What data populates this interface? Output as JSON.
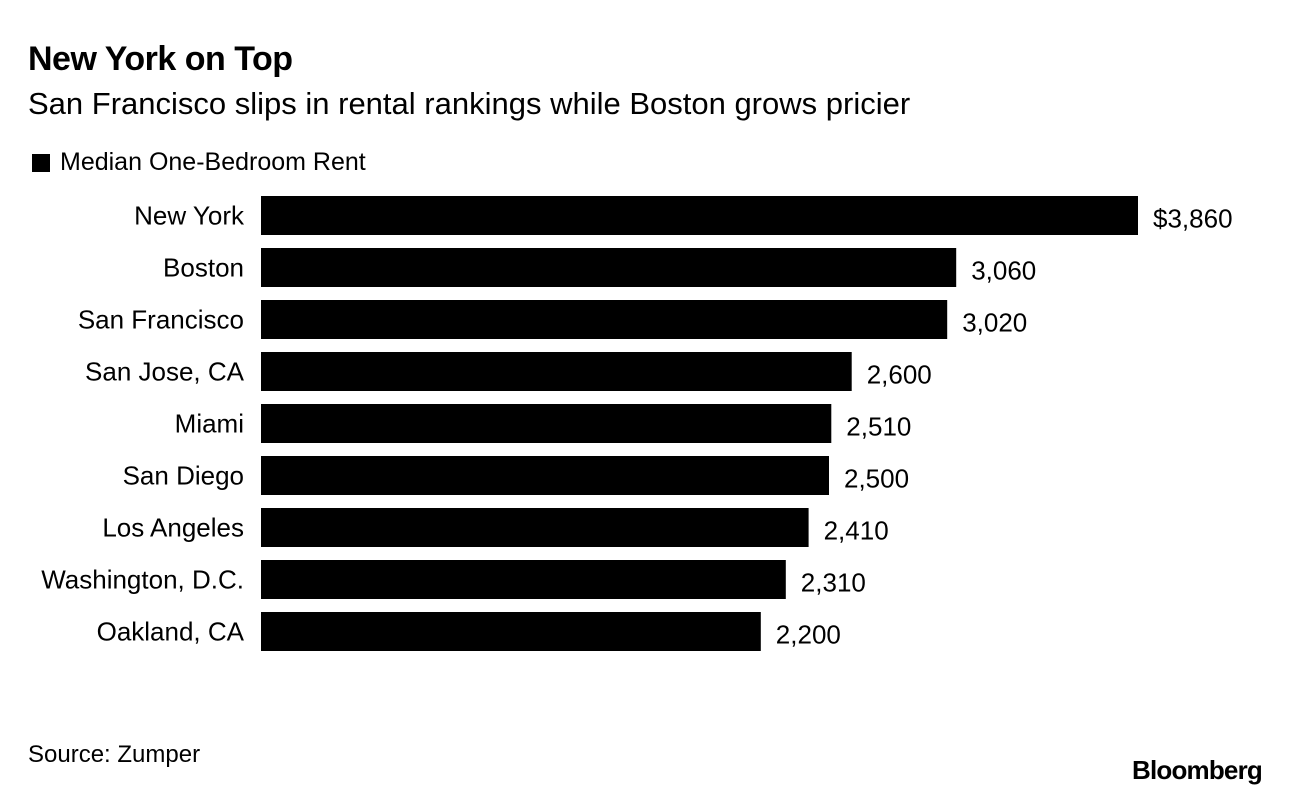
{
  "header": {
    "title": "New York on Top",
    "subtitle": "San Francisco slips in rental rankings while Boston grows pricier"
  },
  "legend": {
    "label": "Median One-Bedroom Rent"
  },
  "colors": {
    "bar": "#000000",
    "text": "#000000",
    "background": "#ffffff"
  },
  "chart_data": {
    "type": "bar",
    "orientation": "horizontal",
    "title": "New York on Top",
    "subtitle": "San Francisco slips in rental rankings while Boston grows pricier",
    "categories": [
      "New York",
      "Boston",
      "San Francisco",
      "San Jose, CA",
      "Miami",
      "San Diego",
      "Los Angeles",
      "Washington, D.C.",
      "Oakland, CA"
    ],
    "series": [
      {
        "name": "Median One-Bedroom Rent",
        "values": [
          3860,
          3060,
          3020,
          2600,
          2510,
          2500,
          2410,
          2310,
          2200
        ]
      }
    ],
    "value_labels": [
      "$3,860",
      "3,060",
      "3,020",
      "2,600",
      "2,510",
      "2,500",
      "2,410",
      "2,310",
      "2,200"
    ],
    "xlim": [
      0,
      3860
    ],
    "grid": false,
    "legend_position": "top-left"
  },
  "footer": {
    "source": "Source: Zumper",
    "brand": "Bloomberg"
  }
}
